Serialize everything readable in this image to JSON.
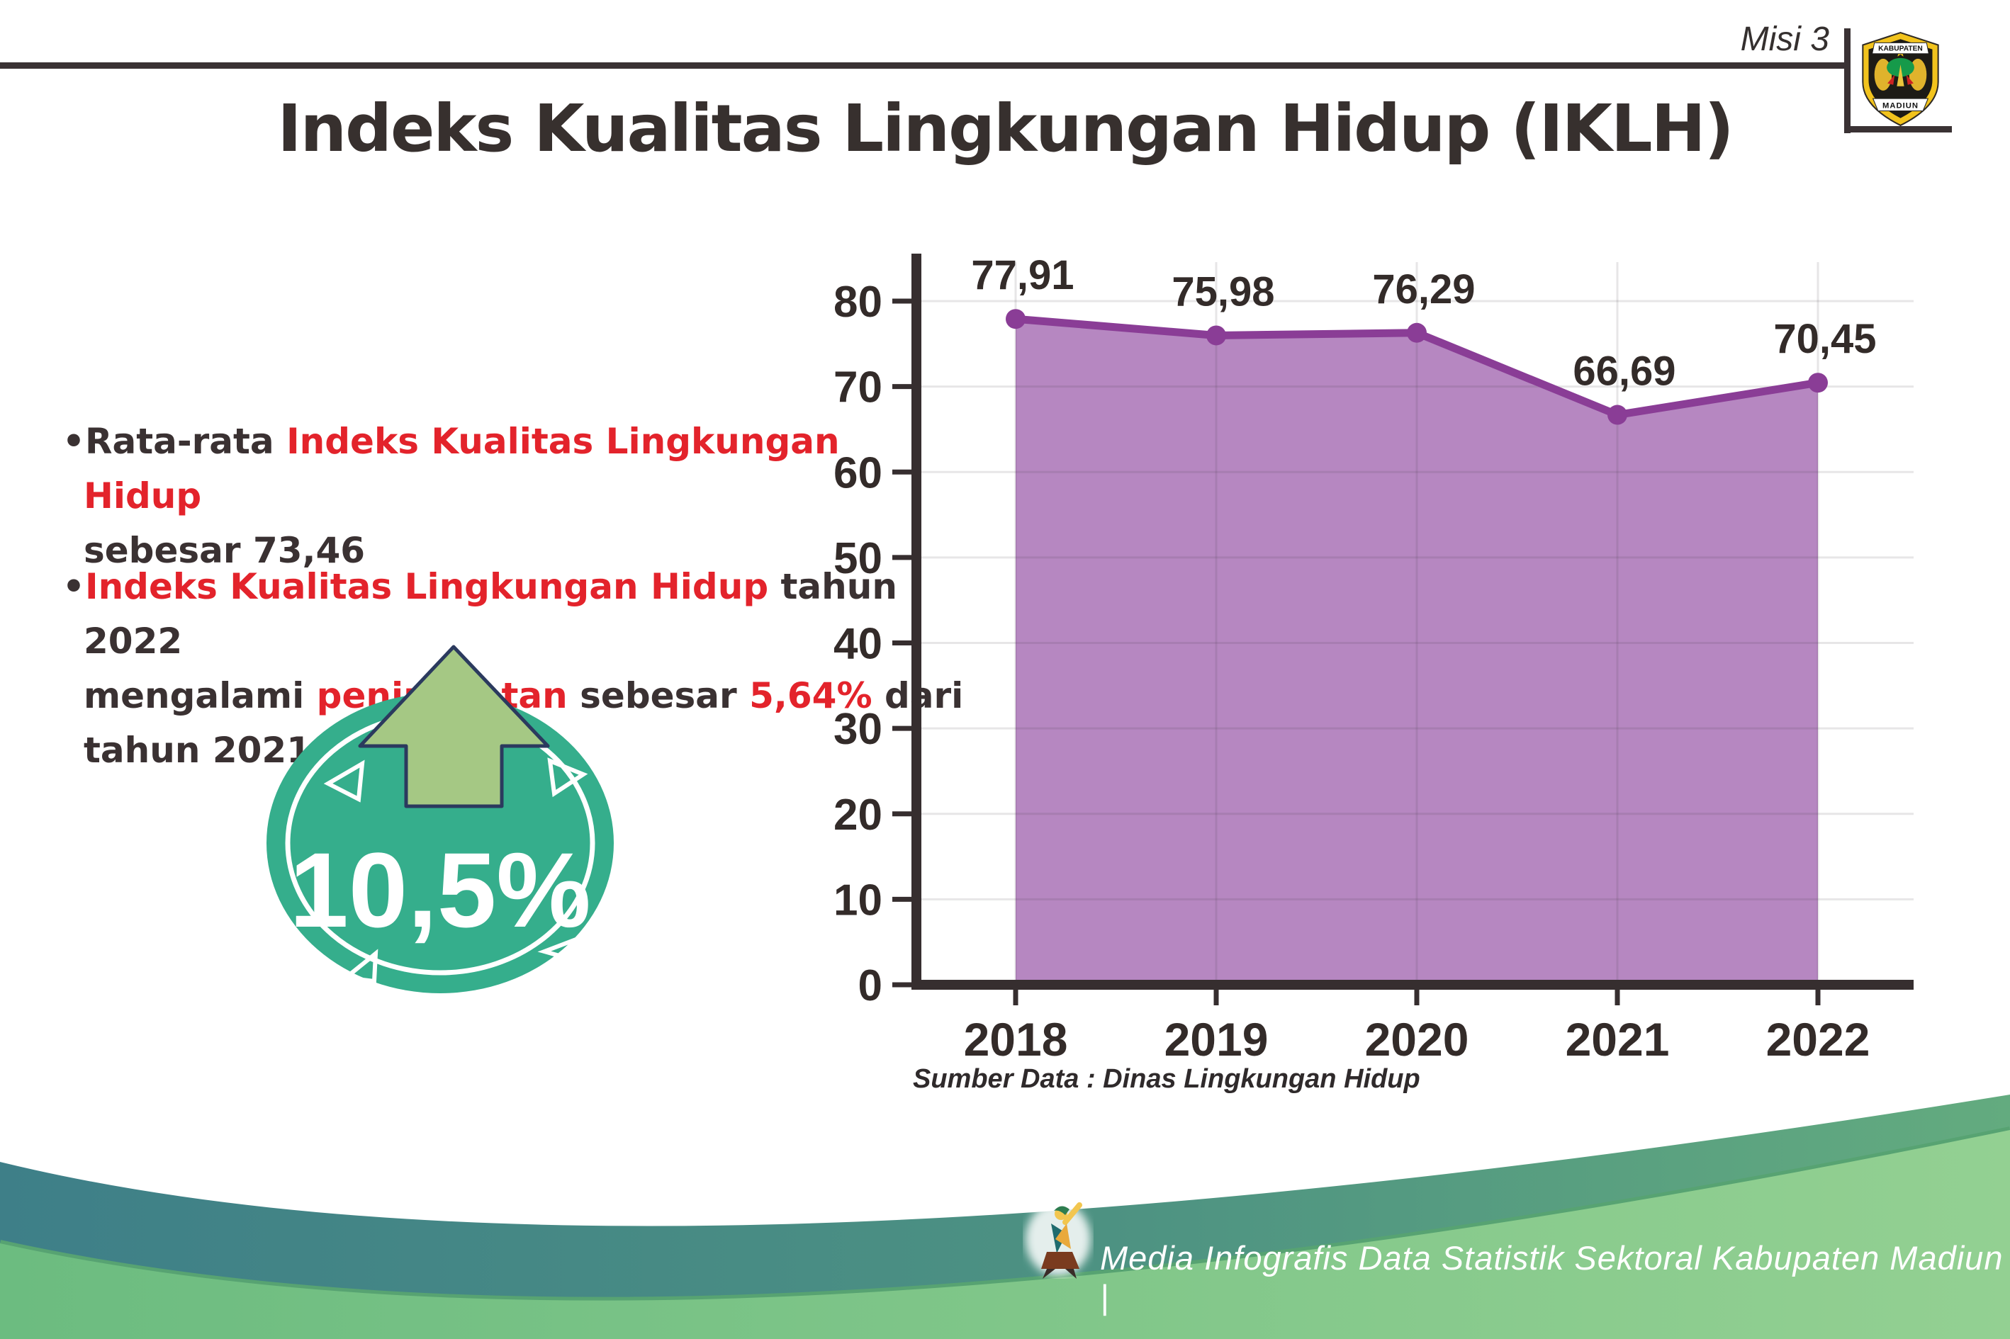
{
  "header": {
    "misi_label": "Misi 3",
    "logo": {
      "top_text": "KABUPATEN",
      "bottom_text": "MADIUN"
    }
  },
  "title": "Indeks Kualitas Lingkungan Hidup (IKLH)",
  "notes": {
    "bullet_char": "•",
    "b1_seg1": "Rata-rata ",
    "b1_seg2": "Indeks Kualitas Lingkungan Hidup",
    "b1_seg3": "sebesar 73,46",
    "b2_seg1": "Indeks Kualitas Lingkungan Hidup",
    "b2_seg2": " tahun 2022",
    "b2_seg3": "mengalami ",
    "b2_seg4": "peningkatan",
    "b2_seg5": " sebesar ",
    "b2_seg6": "5,64%",
    "b2_seg7": " dari",
    "b2_seg8": "tahun 2021"
  },
  "badge": {
    "value": "10,5%",
    "circle_color": "#35ae8c",
    "arrow_color": "#a5c884",
    "arrow_outline": "#2b3a5e"
  },
  "chart_data": {
    "type": "area",
    "categories": [
      "2018",
      "2019",
      "2020",
      "2021",
      "2022"
    ],
    "values": [
      77.91,
      75.98,
      76.29,
      66.69,
      70.45
    ],
    "value_labels": [
      "77,91",
      "75,98",
      "76,29",
      "66,69",
      "70,45"
    ],
    "title": "Indeks Kualitas Lingkungan Hidup (IKLH)",
    "xlabel": "",
    "ylabel": "",
    "ylim": [
      0,
      80
    ],
    "ytick_step": 10,
    "grid": true,
    "legend": "none",
    "line_color": "#8a3d96",
    "fill_color": "#b687c1",
    "axis_color": "#362e2f",
    "label_color": "#332b29",
    "source": "Sumber Data : Dinas Lingkungan Hidup"
  },
  "footer": {
    "credit": "Media Infografis Data Statistik Sektoral Kabupaten Madiun |"
  }
}
